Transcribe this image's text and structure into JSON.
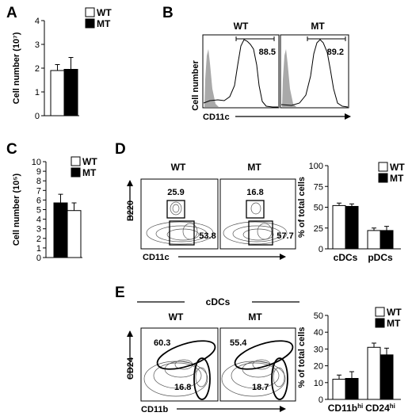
{
  "panels": {
    "A": {
      "label": "A",
      "chart_data": {
        "type": "bar",
        "categories": [
          "WT",
          "MT"
        ],
        "values": [
          1.9,
          1.95
        ],
        "errors": [
          0.25,
          0.5
        ],
        "colors": [
          "#ffffff",
          "#000000"
        ],
        "ylabel": "Cell number (10⁷)",
        "ylim": [
          0,
          4
        ],
        "yticks": [
          "0",
          "1",
          "2",
          "3",
          "4"
        ],
        "legend": [
          {
            "name": "WT",
            "color": "#ffffff"
          },
          {
            "name": "MT",
            "color": "#000000"
          }
        ],
        "legend_position": "top-right"
      }
    },
    "B": {
      "label": "B",
      "ylabel": "Cell number",
      "xlabel": "CD11c",
      "histograms": [
        {
          "title": "WT",
          "gate_value": "88.5"
        },
        {
          "title": "MT",
          "gate_value": "89.2"
        }
      ]
    },
    "C": {
      "label": "C",
      "chart_data": {
        "type": "bar",
        "categories": [
          "MT",
          "WT"
        ],
        "values": [
          5.7,
          4.9
        ],
        "errors": [
          0.9,
          0.8
        ],
        "colors": [
          "#000000",
          "#ffffff"
        ],
        "ylabel": "Cell number (10⁵)",
        "ylim": [
          0,
          10
        ],
        "yticks": [
          "0",
          "1",
          "2",
          "3",
          "4",
          "5",
          "6",
          "7",
          "8",
          "9",
          "10"
        ],
        "legend": [
          {
            "name": "WT",
            "color": "#ffffff"
          },
          {
            "name": "MT",
            "color": "#000000"
          }
        ],
        "legend_position": "top-right"
      }
    },
    "D": {
      "label": "D",
      "flow": {
        "ylabel": "B220",
        "xlabel": "CD11c",
        "plots": [
          {
            "title": "WT",
            "upper_gate": "25.9",
            "lower_gate": "53.8"
          },
          {
            "title": "MT",
            "upper_gate": "16.8",
            "lower_gate": "57.7"
          }
        ]
      },
      "chart_data": {
        "type": "bar",
        "categories": [
          "cDCs",
          "pDCs"
        ],
        "series": [
          {
            "name": "WT",
            "values": [
              52,
              22
            ],
            "errors": [
              3,
              3
            ],
            "color": "#ffffff"
          },
          {
            "name": "MT",
            "values": [
              51,
              22
            ],
            "errors": [
              3,
              5
            ],
            "color": "#000000"
          }
        ],
        "ylabel": "% of total cells",
        "ylim": [
          0,
          100
        ],
        "yticks": [
          "0",
          "25",
          "50",
          "75",
          "100"
        ],
        "legend_position": "top-right"
      }
    },
    "E": {
      "label": "E",
      "flow": {
        "header": "cDCs",
        "ylabel": "CD24",
        "xlabel": "CD11b",
        "plots": [
          {
            "title": "WT",
            "upper_gate": "60.3",
            "lower_gate": "16.8"
          },
          {
            "title": "MT",
            "upper_gate": "55.4",
            "lower_gate": "18.7"
          }
        ]
      },
      "chart_data": {
        "type": "bar",
        "categories": [
          "CD11b",
          "CD24"
        ],
        "category_superscripts": [
          "hi",
          "hi"
        ],
        "series": [
          {
            "name": "WT",
            "values": [
              12,
              31
            ],
            "errors": [
              2.5,
              2.5
            ],
            "color": "#ffffff"
          },
          {
            "name": "MT",
            "values": [
              12.5,
              26.5
            ],
            "errors": [
              4,
              4
            ],
            "color": "#000000"
          }
        ],
        "ylabel": "% of total cells",
        "ylim": [
          0,
          50
        ],
        "yticks": [
          "0",
          "10",
          "20",
          "30",
          "40",
          "50"
        ],
        "legend_position": "top-right"
      }
    }
  }
}
